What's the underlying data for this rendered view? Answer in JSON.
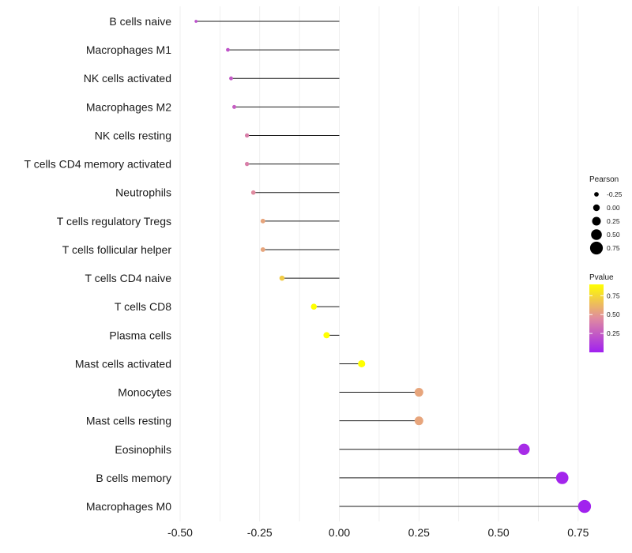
{
  "chart_data": {
    "type": "lollipop",
    "title": "",
    "xlabel": "",
    "ylabel": "",
    "xlim": [
      -0.5,
      0.8
    ],
    "xticks": [
      -0.5,
      -0.25,
      0.0,
      0.25,
      0.5,
      0.75
    ],
    "xtick_labels": [
      "-0.50",
      "-0.25",
      "0.00",
      "0.25",
      "0.50",
      "0.75"
    ],
    "grid": true,
    "categories": [
      "B cells naive",
      "Macrophages M1",
      "NK cells activated",
      "Macrophages M2",
      "NK cells resting",
      "T cells CD4 memory activated",
      "Neutrophils",
      "T cells regulatory  Tregs ",
      "T cells follicular helper",
      "T cells CD4 naive",
      "T cells CD8",
      "Plasma cells",
      "Mast cells activated",
      "Monocytes",
      "Mast cells resting",
      "Eosinophils",
      "B cells memory",
      "Macrophages M0"
    ],
    "pearson": [
      -0.45,
      -0.35,
      -0.34,
      -0.33,
      -0.29,
      -0.29,
      -0.27,
      -0.24,
      -0.24,
      -0.18,
      -0.08,
      -0.04,
      0.07,
      0.25,
      0.25,
      0.58,
      0.7,
      0.77
    ],
    "pvalue": [
      0.2,
      0.22,
      0.24,
      0.26,
      0.4,
      0.4,
      0.45,
      0.55,
      0.55,
      0.7,
      0.95,
      0.98,
      0.9,
      0.55,
      0.55,
      0.05,
      0.02,
      0.01
    ],
    "legend_size": {
      "title": "Pearson",
      "values": [
        -0.25,
        0.0,
        0.25,
        0.5,
        0.75
      ],
      "labels": [
        "-0.25",
        "0.00",
        "0.25",
        "0.50",
        "0.75"
      ]
    },
    "legend_color": {
      "title": "Pvalue",
      "values": [
        0.25,
        0.5,
        0.75
      ],
      "labels": [
        "0.25",
        "0.50",
        "0.75"
      ],
      "range": [
        0.0,
        0.9
      ],
      "color_low": "#a020f0",
      "color_mid": "#e08ba0",
      "color_high": "#ffff00"
    },
    "legend_position": "right"
  }
}
